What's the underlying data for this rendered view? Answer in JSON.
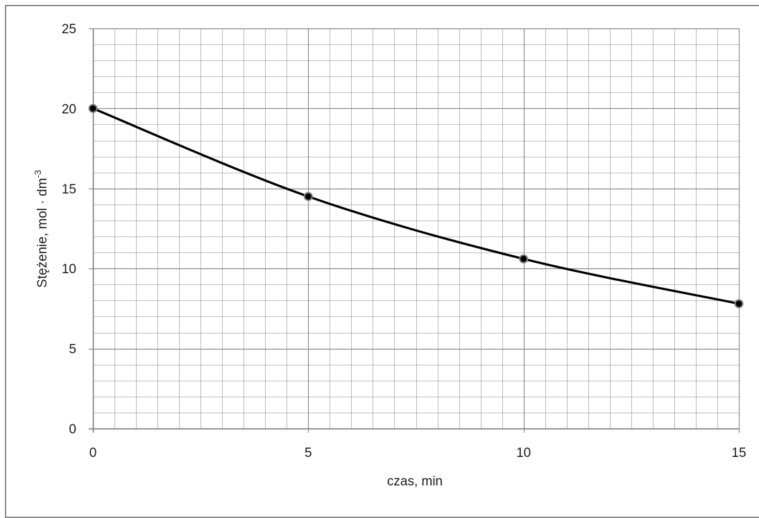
{
  "chart_data": {
    "type": "line",
    "x": [
      0,
      5,
      10,
      15
    ],
    "series": [
      {
        "values": [
          20.0,
          14.5,
          10.6,
          7.8
        ]
      }
    ],
    "xlabel": "czas, min",
    "ylabel": {
      "text": "Stężenie, mol · dm",
      "superscript": "-3"
    },
    "xlim": [
      0,
      15
    ],
    "ylim": [
      0,
      25
    ],
    "x_major_ticks": [
      "0",
      "5",
      "10",
      "15"
    ],
    "y_major_ticks": [
      "0",
      "5",
      "10",
      "15",
      "20",
      "25"
    ],
    "grid": true,
    "minor_grid": true,
    "legend": "none",
    "colors": {
      "line": "#000000",
      "marker_fill": "#000000",
      "marker_stroke": "#7f7f7f",
      "grid": "#8c8c8c",
      "frame": "#8c8c8c"
    }
  }
}
